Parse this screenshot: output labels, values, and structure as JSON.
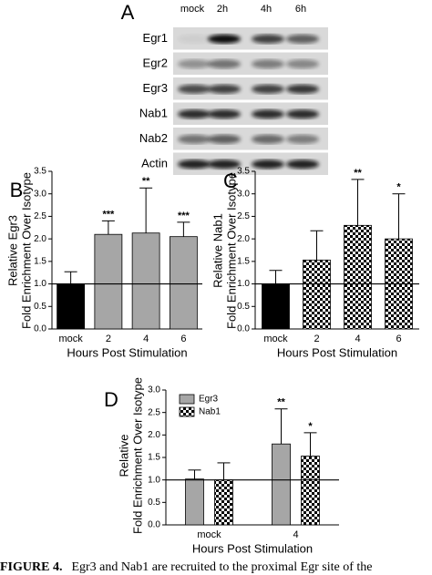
{
  "blot": {
    "panel": "A",
    "lanes": [
      "mock",
      "2h",
      "4h",
      "6h"
    ],
    "rows": [
      "Egr1",
      "Egr2",
      "Egr3",
      "Nab1",
      "Nab2",
      "Actin"
    ]
  },
  "chart_data": [
    {
      "type": "bar",
      "panel": "B",
      "categories": [
        "mock",
        "2",
        "4",
        "6"
      ],
      "series": [
        {
          "fills": [
            "#000000",
            "#a6a6a6",
            "#a6a6a6",
            "#a6a6a6"
          ],
          "values": [
            1.0,
            2.1,
            2.13,
            2.05
          ],
          "errors": [
            0.27,
            0.3,
            1.0,
            0.32
          ],
          "annotations": [
            null,
            "***",
            "**",
            "***"
          ]
        }
      ],
      "ylim": [
        0,
        3.5
      ],
      "yticks": [
        {
          "value": 0,
          "label": "0.0"
        },
        {
          "value": 0.5,
          "label": "0.5"
        },
        {
          "value": 1,
          "label": "1.0"
        },
        {
          "value": 1.5,
          "label": "1.5"
        },
        {
          "value": 2,
          "label": "2.0"
        },
        {
          "value": 2.5,
          "label": "2.5"
        },
        {
          "value": 3,
          "label": "3.0"
        },
        {
          "value": 3.5,
          "label": "3.5"
        }
      ],
      "reference_line": 1.0,
      "ylabel": [
        "Relative Egr3",
        "Fold Enrichment Over Isotype"
      ],
      "xlabel": "Hours Post Stimulation"
    },
    {
      "type": "bar",
      "panel": "C",
      "categories": [
        "mock",
        "2",
        "4",
        "6"
      ],
      "series": [
        {
          "fills": [
            "#000000",
            "checker",
            "checker",
            "checker"
          ],
          "values": [
            1.0,
            1.53,
            2.3,
            2.0
          ],
          "errors": [
            0.3,
            0.65,
            1.02,
            1.0
          ],
          "annotations": [
            null,
            null,
            "**",
            "*"
          ]
        }
      ],
      "ylim": [
        0,
        3.5
      ],
      "yticks": [
        {
          "value": 0,
          "label": "0.0"
        },
        {
          "value": 0.5,
          "label": "0.5"
        },
        {
          "value": 1,
          "label": "1.0"
        },
        {
          "value": 1.5,
          "label": "1.5"
        },
        {
          "value": 2,
          "label": "2.0"
        },
        {
          "value": 2.5,
          "label": "2.5"
        },
        {
          "value": 3,
          "label": "3.0"
        },
        {
          "value": 3.5,
          "label": "3.5"
        }
      ],
      "reference_line": 1.0,
      "ylabel": [
        "Relative Nab1",
        "Fold Enrichment Over Isotype"
      ],
      "xlabel": "Hours Post Stimulation"
    },
    {
      "type": "bar",
      "panel": "D",
      "categories": [
        "mock",
        "4"
      ],
      "series": [
        {
          "name": "Egr3",
          "fill": "#a6a6a6",
          "values": [
            1.02,
            1.8
          ],
          "errors": [
            0.2,
            0.78
          ],
          "annotations": [
            null,
            "**"
          ]
        },
        {
          "name": "Nab1",
          "fill": "checker",
          "values": [
            1.0,
            1.53
          ],
          "errors": [
            0.38,
            0.52
          ],
          "annotations": [
            null,
            "*"
          ]
        }
      ],
      "ylim": [
        0,
        3.0
      ],
      "yticks": [
        {
          "value": 0,
          "label": "0.0"
        },
        {
          "value": 0.5,
          "label": "0.5"
        },
        {
          "value": 1,
          "label": "1.0"
        },
        {
          "value": 1.5,
          "label": "1.5"
        },
        {
          "value": 2,
          "label": "2.0"
        },
        {
          "value": 2.5,
          "label": "2.5"
        },
        {
          "value": 3,
          "label": "3.0"
        }
      ],
      "reference_line": 1.0,
      "legend": "top-left",
      "ylabel": [
        "Relative",
        "Fold Enrichment Over Isotype"
      ],
      "xlabel": "Hours Post Stimulation"
    }
  ],
  "caption": {
    "label": "FIGURE 4.",
    "text": "Egr3 and Nab1 are recruited to the proximal Egr site of the"
  }
}
